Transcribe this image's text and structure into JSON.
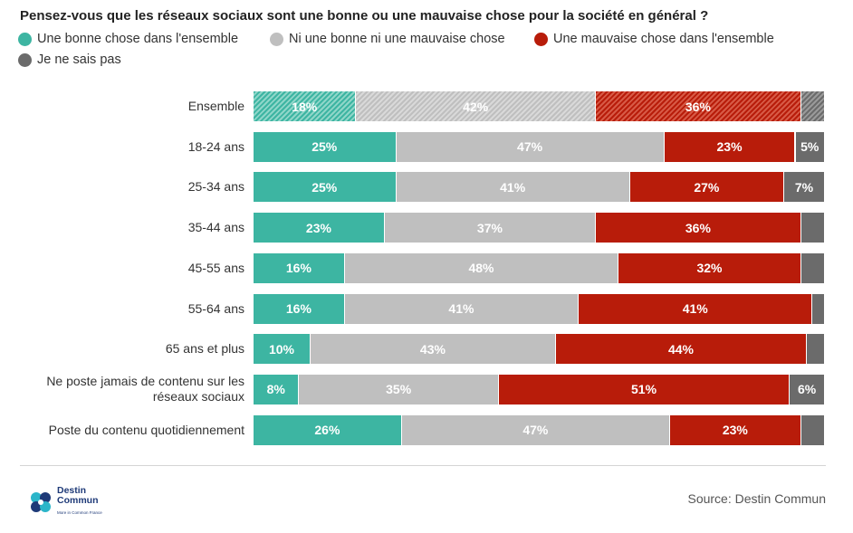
{
  "chart_data": {
    "type": "bar",
    "orientation": "horizontal-stacked-100",
    "title": "Pensez-vous que les réseaux sociaux sont une bonne ou une mauvaise chose pour la société en général ?",
    "legend_position": "top-left",
    "series": [
      {
        "name": "Une bonne chose dans l'ensemble",
        "color": "#3db5a2"
      },
      {
        "name": "Ni une bonne ni une mauvaise chose",
        "color": "#bfbfbf"
      },
      {
        "name": "Une mauvaise chose dans l'ensemble",
        "color": "#b81c0a"
      },
      {
        "name": "Je ne sais pas",
        "color": "#6b6b6b"
      }
    ],
    "rows": [
      {
        "label": "Ensemble",
        "hatched": true,
        "values": [
          18,
          42,
          36,
          4
        ],
        "labels": [
          "18%",
          "42%",
          "36%",
          ""
        ]
      },
      {
        "label": "18-24 ans",
        "values": [
          25,
          47,
          23,
          5
        ],
        "labels": [
          "25%",
          "47%",
          "23%",
          "5%"
        ]
      },
      {
        "label": "25-34 ans",
        "values": [
          25,
          41,
          27,
          7
        ],
        "labels": [
          "25%",
          "41%",
          "27%",
          "7%"
        ]
      },
      {
        "label": "35-44 ans",
        "values": [
          23,
          37,
          36,
          4
        ],
        "labels": [
          "23%",
          "37%",
          "36%",
          ""
        ]
      },
      {
        "label": "45-55 ans",
        "values": [
          16,
          48,
          32,
          4
        ],
        "labels": [
          "16%",
          "48%",
          "32%",
          ""
        ]
      },
      {
        "label": "55-64 ans",
        "values": [
          16,
          41,
          41,
          2
        ],
        "labels": [
          "16%",
          "41%",
          "41%",
          ""
        ]
      },
      {
        "label": "65 ans et plus",
        "values": [
          10,
          43,
          44,
          3
        ],
        "labels": [
          "10%",
          "43%",
          "44%",
          ""
        ]
      },
      {
        "label": "Ne poste jamais de contenu sur les réseaux sociaux",
        "values": [
          8,
          35,
          51,
          6
        ],
        "labels": [
          "8%",
          "35%",
          "51%",
          "6%"
        ]
      },
      {
        "label": "Poste du contenu quotidiennement",
        "values": [
          26,
          47,
          23,
          4
        ],
        "labels": [
          "26%",
          "47%",
          "23%",
          ""
        ]
      }
    ]
  },
  "footer": {
    "source": "Source: Destin Commun",
    "logo_line1": "Destin",
    "logo_line2": "Commun",
    "logo_tagline": "More in Common France"
  }
}
